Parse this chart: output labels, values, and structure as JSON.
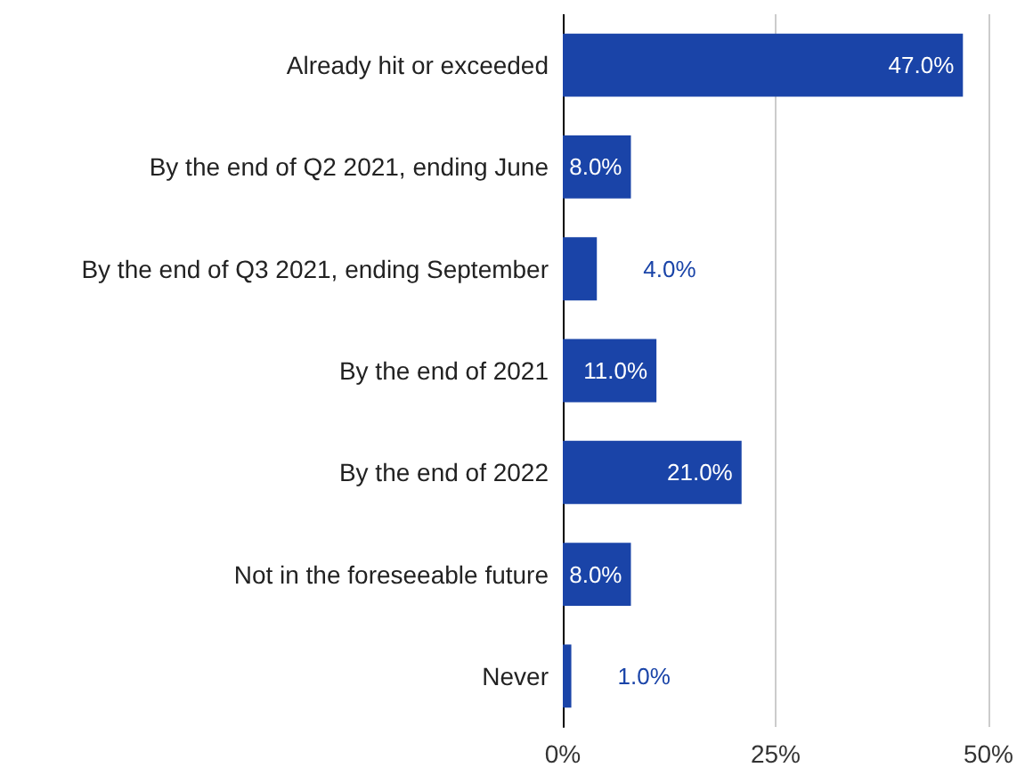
{
  "chart_data": {
    "type": "bar",
    "orientation": "horizontal",
    "categories": [
      "Already hit or exceeded",
      "By the end of Q2 2021, ending June",
      "By the end of Q3 2021, ending September",
      "By the end of 2021",
      "By the end of 2022",
      "Not in the foreseeable future",
      "Never"
    ],
    "values": [
      47,
      8,
      4,
      11,
      21,
      8,
      1
    ],
    "value_labels": [
      "47.0%",
      "8.0%",
      "4.0%",
      "11.0%",
      "21.0%",
      "8.0%",
      "1.0%"
    ],
    "color": "#1a44a8",
    "xlim": [
      0,
      50
    ],
    "xticks": [
      {
        "value": 0,
        "label": "0%"
      },
      {
        "value": 25,
        "label": "25%"
      },
      {
        "value": 50,
        "label": "50%"
      }
    ],
    "grid": "x"
  }
}
